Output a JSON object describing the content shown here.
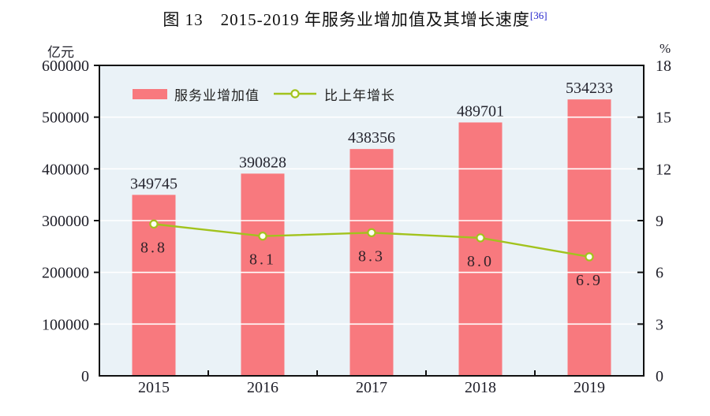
{
  "figure": {
    "title_prefix": "图 13",
    "title_main": "2015-2019 年服务业增加值及其增长速度",
    "footnote_ref": "[36]"
  },
  "chart_data": {
    "type": "combo-bar-line",
    "categories": [
      "2015",
      "2016",
      "2017",
      "2018",
      "2019"
    ],
    "series": [
      {
        "name": "服务业增加值",
        "type": "bar",
        "axis": "left",
        "values": [
          349745,
          390828,
          438356,
          489701,
          534233
        ],
        "labels": [
          "349745",
          "390828",
          "438356",
          "489701",
          "534233"
        ],
        "color": "#f8797e"
      },
      {
        "name": "比上年增长",
        "type": "line",
        "axis": "right",
        "values": [
          8.8,
          8.1,
          8.3,
          8.0,
          6.9
        ],
        "labels": [
          "8.8",
          "8.1",
          "8.3",
          "8.0",
          "6.9"
        ],
        "color": "#a2c31d",
        "marker": "open-circle",
        "marker_fill": "#fdfff2"
      }
    ],
    "left_axis": {
      "unit": "亿元",
      "min": 0,
      "max": 600000,
      "step": 100000,
      "tick_labels": [
        "0",
        "100000",
        "200000",
        "300000",
        "400000",
        "500000",
        "600000"
      ]
    },
    "right_axis": {
      "unit": "%",
      "min": 0,
      "max": 18,
      "step": 3,
      "tick_labels": [
        "0",
        "3",
        "6",
        "9",
        "12",
        "15",
        "18"
      ]
    },
    "grid": true,
    "legend_position": "inside-top-left",
    "colors": {
      "plot_bg": "#eaf2f7",
      "grid": "#ffffff",
      "axis": "#111111",
      "tick_text": "#1e1e28",
      "bar_label": "#262630",
      "growth_label": "#33232a",
      "footnote": "#2323cc"
    }
  }
}
